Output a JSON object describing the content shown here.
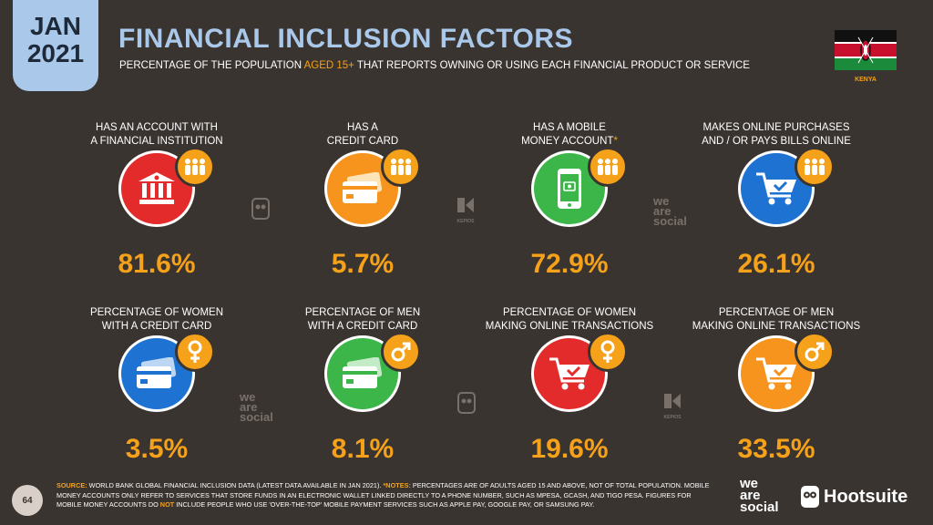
{
  "header": {
    "month": "JAN",
    "year": "2021",
    "title": "FINANCIAL INCLUSION FACTORS",
    "subtitle_pre": "PERCENTAGE OF THE POPULATION ",
    "subtitle_hl": "AGED 15+",
    "subtitle_post": " THAT REPORTS OWNING OR USING EACH FINANCIAL PRODUCT OR SERVICE",
    "country": "KENYA"
  },
  "colors": {
    "accent": "#f5a11a",
    "title": "#a9c8ea",
    "red": "#e32b2b",
    "orange": "#f7941d",
    "green": "#3cb648",
    "blue": "#1e73d2",
    "background": "#3a3430"
  },
  "stats": [
    {
      "label1": "HAS AN ACCOUNT WITH",
      "label2": "A FINANCIAL INSTITUTION",
      "value": "81.6%",
      "icon": "bank-icon",
      "color": "red"
    },
    {
      "label1": "HAS A",
      "label2": "CREDIT CARD",
      "value": "5.7%",
      "icon": "credit-card-icon",
      "color": "orange"
    },
    {
      "label1": "HAS A MOBILE",
      "label2": "MONEY ACCOUNT",
      "star": "*",
      "value": "72.9%",
      "icon": "mobile-money-icon",
      "color": "green"
    },
    {
      "label1": "MAKES ONLINE PURCHASES",
      "label2": "AND / OR PAYS BILLS ONLINE",
      "value": "26.1%",
      "icon": "shopping-cart-icon",
      "color": "blue"
    },
    {
      "label1": "PERCENTAGE OF WOMEN",
      "label2": "WITH A CREDIT CARD",
      "value": "3.5%",
      "icon": "credit-card-icon",
      "color": "blue"
    },
    {
      "label1": "PERCENTAGE OF MEN",
      "label2": "WITH A CREDIT CARD",
      "value": "8.1%",
      "icon": "credit-card-icon",
      "color": "green"
    },
    {
      "label1": "PERCENTAGE OF WOMEN",
      "label2": "MAKING ONLINE TRANSACTIONS",
      "value": "19.6%",
      "icon": "shopping-cart-icon",
      "color": "red"
    },
    {
      "label1": "PERCENTAGE OF MEN",
      "label2": "MAKING ONLINE TRANSACTIONS",
      "value": "33.5%",
      "icon": "shopping-cart-icon",
      "color": "orange"
    }
  ],
  "footer": {
    "source_label": "SOURCE:",
    "source_text": " WORLD BANK GLOBAL FINANCIAL INCLUSION DATA (LATEST DATA AVAILABLE IN JAN 2021). ",
    "notes_label": "*NOTES:",
    "notes_text1": " PERCENTAGES ARE OF ADULTS AGED 15 AND ABOVE, NOT OF TOTAL POPULATION. MOBILE MONEY ACCOUNTS ONLY REFER TO SERVICES THAT STORE FUNDS IN AN ELECTRONIC WALLET LINKED DIRECTLY TO A PHONE NUMBER, SUCH AS MPESA, GCASH, AND TIGO PESA. FIGURES FOR MOBILE MONEY ACCOUNTS DO ",
    "not_word": "NOT",
    "notes_text2": " INCLUDE PEOPLE WHO USE 'OVER-THE-TOP' MOBILE PAYMENT SERVICES SUCH AS APPLE PAY, GOOGLE PAY, OR SAMSUNG PAY.",
    "page": "64",
    "was_line1": "we",
    "was_line2": "are",
    "was_line3": "social",
    "hootsuite": "Hootsuite"
  },
  "watermarks": {
    "we": "we",
    "are": "are",
    "social": "social",
    "kepios": "KEPIOS"
  }
}
